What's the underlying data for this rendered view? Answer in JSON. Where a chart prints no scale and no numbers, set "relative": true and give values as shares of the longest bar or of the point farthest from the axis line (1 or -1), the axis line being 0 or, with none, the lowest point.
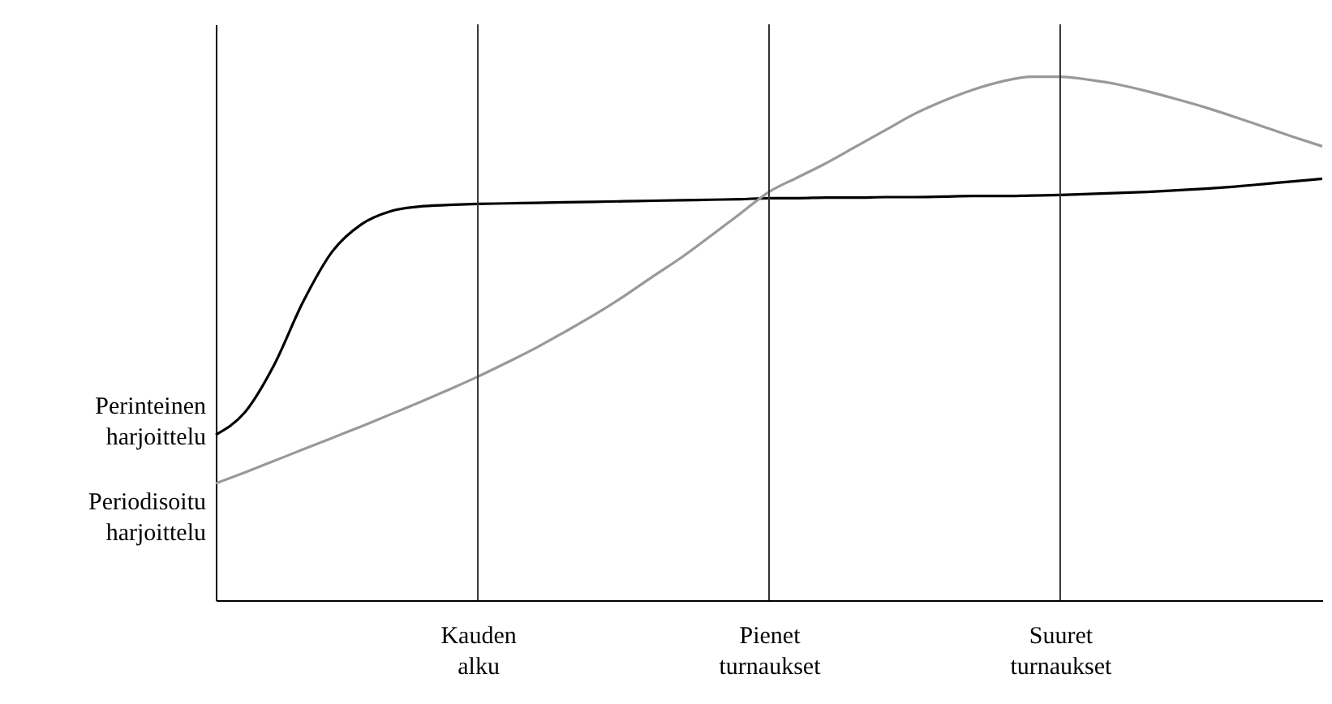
{
  "chart_data": {
    "type": "line",
    "relative": true,
    "categories": [
      null,
      null,
      null,
      null,
      null,
      null,
      null,
      null,
      null,
      "Kauden alku",
      null,
      null,
      null,
      null,
      null,
      null,
      null,
      null,
      null,
      "Pienet turnaukset",
      null,
      null,
      null,
      null,
      null,
      null,
      null,
      null,
      null,
      "Suuret turnaukset",
      null,
      null,
      null,
      null,
      null,
      null,
      null,
      null,
      null
    ],
    "series": [
      {
        "name": "Perinteinen harjoittelu",
        "color": "#000000",
        "values": [
          0.316,
          0.359,
          0.449,
          0.57,
          0.666,
          0.718,
          0.743,
          0.752,
          0.755,
          0.757,
          0.758,
          0.759,
          0.76,
          0.761,
          0.762,
          0.763,
          0.764,
          0.765,
          0.766,
          0.768,
          0.768,
          0.769,
          0.769,
          0.77,
          0.77,
          0.771,
          0.772,
          0.772,
          0.773,
          0.774,
          0.776,
          0.778,
          0.78,
          0.783,
          0.786,
          0.79,
          0.795,
          0.8,
          0.805
        ]
      },
      {
        "name": "Periodisoitu harjoittelu",
        "color": "#999999",
        "values": [
          0.223,
          0.244,
          0.266,
          0.288,
          0.31,
          0.332,
          0.355,
          0.378,
          0.402,
          0.427,
          0.454,
          0.482,
          0.513,
          0.545,
          0.58,
          0.618,
          0.655,
          0.696,
          0.738,
          0.78,
          0.808,
          0.836,
          0.867,
          0.898,
          0.929,
          0.954,
          0.975,
          0.991,
          1.0,
          1.0,
          0.994,
          0.985,
          0.972,
          0.957,
          0.941,
          0.923,
          0.904,
          0.885,
          0.867
        ]
      }
    ],
    "ref_lines": [
      {
        "axis": "x",
        "value": "Kauden alku"
      },
      {
        "axis": "x",
        "value": "Pienet turnaukset"
      },
      {
        "axis": "x",
        "value": "Suuret turnaukset"
      }
    ]
  }
}
